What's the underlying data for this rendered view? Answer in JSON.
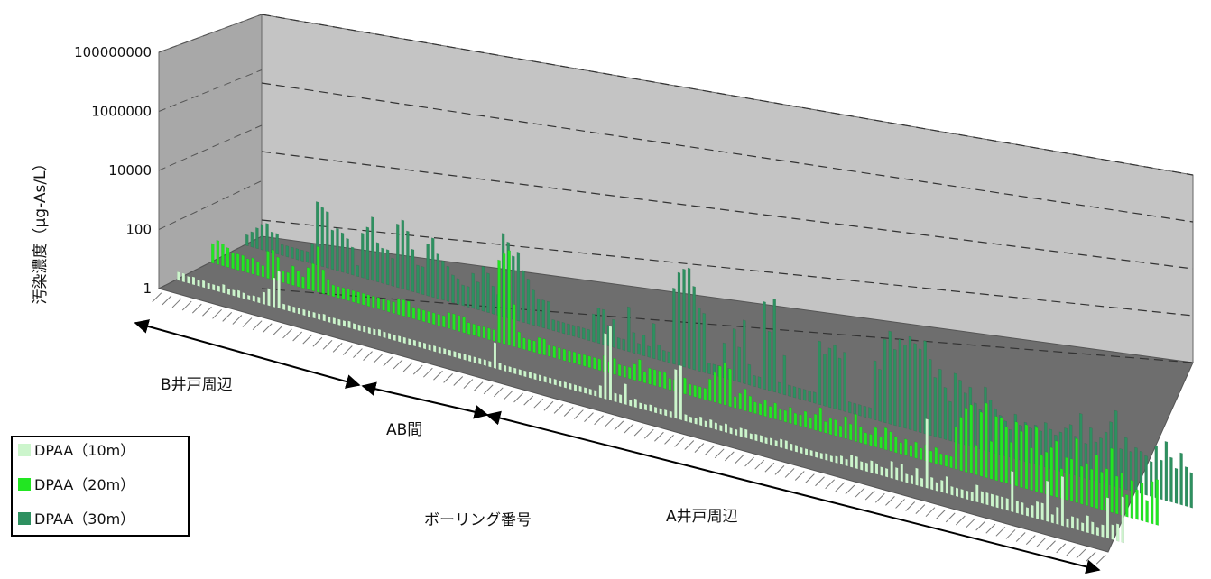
{
  "chart_data": {
    "type": "bar",
    "title": "",
    "xlabel": "ボーリング番号",
    "ylabel": "汚染濃度（μg-As/L）",
    "yscale": "log",
    "ylim": [
      1,
      100000000
    ],
    "yticks": [
      "1",
      "100",
      "10000",
      "1000000",
      "100000000"
    ],
    "grid": true,
    "legend_position": "bottom-left",
    "regions": [
      {
        "label": "B井戸周辺"
      },
      {
        "label": "AB間"
      },
      {
        "label": "A井戸周辺"
      }
    ],
    "series": [
      {
        "name": "DPAA（10m）",
        "color": "#ccf5cc",
        "values": [
          1.5,
          1.5,
          1.3,
          1.4,
          1.2,
          1.3,
          1.2,
          1.2,
          1.2,
          1.5,
          1.2,
          1.2,
          1.3,
          1.2,
          1.1,
          1.2,
          1.2,
          2,
          3,
          8,
          15,
          1.2,
          1.2,
          1.2,
          1.2,
          1.2,
          1.2,
          1.2,
          1.2,
          1.3,
          1.2,
          1.2,
          1.2,
          1.2,
          1.3,
          1.2,
          1.2,
          1.2,
          1.2,
          1.2,
          1.3,
          1.2,
          1.2,
          1.2,
          1.2,
          1.2,
          1.2,
          1.2,
          1.2,
          1.2,
          1.2,
          1.2,
          1.2,
          1.2,
          1.2,
          1.2,
          1.2,
          1.2,
          1.2,
          1.2,
          1.2,
          1.2,
          1.2,
          6,
          1.3,
          1.2,
          1.2,
          1.2,
          1.2,
          1.2,
          1.2,
          1.2,
          1.2,
          1.2,
          1.2,
          1.2,
          1.2,
          1.2,
          1.2,
          1.2,
          1.2,
          1.2,
          1.2,
          1.2,
          2,
          150,
          300,
          1.5,
          1.5,
          4,
          1.2,
          1.5,
          1.2,
          1.2,
          1.3,
          1.2,
          1.2,
          1.2,
          1.2,
          40,
          60,
          1.3,
          1.2,
          1.2,
          1.5,
          1.2,
          1.5,
          1.3,
          1.2,
          1.5,
          1.2,
          1.2,
          1.5,
          1.5,
          1.2,
          1.3,
          1.3,
          1.2,
          1.3,
          1.2,
          1.5,
          1.5,
          1.3,
          1.3,
          1.2,
          1.2,
          1.2,
          1.2,
          1.2,
          1.3,
          1.2,
          1.3,
          1.5,
          1.3,
          2,
          2,
          1.5,
          1.5,
          2,
          1.8,
          1.5,
          1.5,
          3,
          2,
          3,
          1.5,
          1.5,
          3,
          1.5,
          200,
          2,
          1.5,
          2,
          3,
          1.5,
          1.5,
          1.5,
          1.5,
          1.5,
          3,
          2,
          2,
          2,
          2,
          2,
          2,
          20,
          2,
          2,
          1.5,
          2,
          3,
          3,
          20,
          1.5,
          3,
          40,
          1.5,
          2,
          2,
          1.5,
          3,
          2,
          1.5,
          2,
          20,
          2.5,
          3,
          30
        ]
      },
      {
        "name": "DPAA（20m）",
        "color": "#22e622",
        "values": [
          4,
          6,
          5,
          4,
          3,
          3,
          3,
          2.5,
          3,
          2.5,
          2,
          8,
          10,
          6,
          2,
          2,
          4,
          3,
          2,
          5,
          8,
          40,
          6,
          3,
          2,
          2,
          2,
          2,
          2,
          2,
          2,
          2,
          2,
          2,
          2,
          2,
          2,
          3,
          3,
          3,
          2,
          2,
          2,
          2,
          2,
          2,
          2,
          3,
          3,
          3,
          3,
          2,
          2,
          2,
          2,
          2,
          2,
          1000,
          2000,
          3000,
          30,
          3,
          2,
          2,
          2,
          3,
          3,
          2,
          2,
          2,
          2,
          2,
          2,
          2,
          2,
          2,
          2,
          2,
          3,
          2,
          3,
          2,
          2,
          2,
          3,
          5,
          2,
          3,
          3,
          3,
          3,
          2,
          2,
          3,
          3,
          2,
          2,
          2,
          2,
          5,
          10,
          20,
          30,
          20,
          2,
          3,
          5,
          3,
          2,
          2,
          3,
          2,
          3,
          2,
          2,
          3,
          2,
          2,
          3,
          2,
          3,
          6,
          2,
          3,
          3,
          2,
          5,
          3,
          8,
          3,
          2,
          2,
          4,
          2,
          5,
          4,
          3,
          2,
          3,
          2,
          3,
          2,
          3,
          2,
          3,
          2,
          2,
          2,
          30,
          80,
          200,
          300,
          10,
          200,
          500,
          20,
          200,
          200,
          100,
          30,
          200,
          100,
          200,
          30,
          200,
          20,
          30,
          50,
          100,
          10,
          30,
          30,
          200,
          20,
          30,
          20,
          80,
          20,
          30,
          200,
          20,
          30,
          5,
          20,
          10,
          20,
          5,
          30,
          40
        ]
      },
      {
        "name": "DPAA（30m）",
        "color": "#2e9060",
        "values": [
          2,
          3,
          5,
          8,
          10,
          5,
          5,
          2,
          2,
          2,
          2,
          2,
          2,
          5,
          300,
          200,
          150,
          30,
          40,
          30,
          20,
          10,
          2,
          50,
          100,
          300,
          30,
          20,
          20,
          10,
          300,
          500,
          200,
          40,
          10,
          10,
          100,
          200,
          50,
          30,
          20,
          10,
          8,
          5,
          5,
          20,
          10,
          50,
          30,
          10,
          5,
          2000,
          1000,
          300,
          500,
          100,
          50,
          20,
          10,
          10,
          10,
          2,
          2,
          2,
          2,
          2,
          2,
          2,
          2,
          10,
          20,
          20,
          5,
          10,
          2,
          2,
          50,
          5,
          2,
          5,
          2,
          20,
          3,
          2,
          2,
          1000,
          5000,
          8000,
          10000,
          2000,
          300,
          200,
          2,
          2,
          2,
          20,
          2,
          100,
          20,
          300,
          5,
          2,
          2,
          3000,
          200,
          5000,
          2,
          30,
          2,
          2,
          2,
          2,
          2,
          2,
          300,
          100,
          200,
          300,
          100,
          200,
          2,
          2,
          2,
          2,
          2,
          200,
          100,
          2000,
          5000,
          1000,
          3000,
          2000,
          5000,
          3000,
          2000,
          5000,
          1000,
          200,
          500,
          100,
          30,
          500,
          300,
          100,
          200,
          50,
          30,
          300,
          100,
          50,
          30,
          20,
          10,
          50,
          20,
          30,
          20,
          30,
          20,
          50,
          30,
          20,
          30,
          50,
          80,
          30,
          300,
          20,
          100,
          30,
          50,
          100,
          300,
          1000,
          30,
          100,
          30,
          50,
          40,
          30,
          20,
          100,
          30,
          200,
          50,
          20,
          100,
          30,
          20,
          20
        ]
      }
    ]
  }
}
